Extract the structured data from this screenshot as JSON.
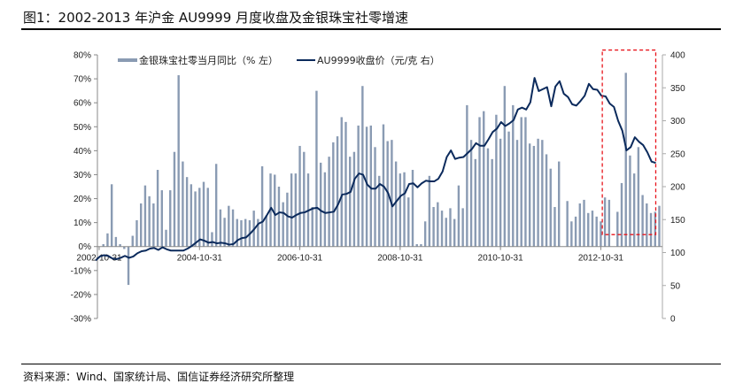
{
  "title": "图1：2002-2013 年沪金 AU9999 月度收盘及金银珠宝社零增速",
  "source": "资料来源：Wind、国家统计局、国信证券经济研究所整理",
  "chart_data": {
    "type": "bar+line",
    "x": [
      "2002-10",
      "2002-11",
      "2002-12",
      "2003-01",
      "2003-02",
      "2003-03",
      "2003-04",
      "2003-05",
      "2003-06",
      "2003-07",
      "2003-08",
      "2003-09",
      "2003-10",
      "2003-11",
      "2003-12",
      "2004-01",
      "2004-02",
      "2004-03",
      "2004-04",
      "2004-05",
      "2004-06",
      "2004-07",
      "2004-08",
      "2004-09",
      "2004-10",
      "2004-11",
      "2004-12",
      "2005-01",
      "2005-02",
      "2005-03",
      "2005-04",
      "2005-05",
      "2005-06",
      "2005-07",
      "2005-08",
      "2005-09",
      "2005-10",
      "2005-11",
      "2005-12",
      "2006-01",
      "2006-02",
      "2006-03",
      "2006-04",
      "2006-05",
      "2006-06",
      "2006-07",
      "2006-08",
      "2006-09",
      "2006-10",
      "2006-11",
      "2006-12",
      "2007-01",
      "2007-02",
      "2007-03",
      "2007-04",
      "2007-05",
      "2007-06",
      "2007-07",
      "2007-08",
      "2007-09",
      "2007-10",
      "2007-11",
      "2007-12",
      "2008-01",
      "2008-02",
      "2008-03",
      "2008-04",
      "2008-05",
      "2008-06",
      "2008-07",
      "2008-08",
      "2008-09",
      "2008-10",
      "2008-11",
      "2008-12",
      "2009-01",
      "2009-02",
      "2009-03",
      "2009-04",
      "2009-05",
      "2009-06",
      "2009-07",
      "2009-08",
      "2009-09",
      "2009-10",
      "2009-11",
      "2009-12",
      "2010-01",
      "2010-02",
      "2010-03",
      "2010-04",
      "2010-05",
      "2010-06",
      "2010-07",
      "2010-08",
      "2010-09",
      "2010-10",
      "2010-11",
      "2010-12",
      "2011-01",
      "2011-02",
      "2011-03",
      "2011-04",
      "2011-05",
      "2011-06",
      "2011-07",
      "2011-08",
      "2011-09",
      "2011-10",
      "2011-11",
      "2011-12",
      "2012-01",
      "2012-02",
      "2012-03",
      "2012-04",
      "2012-05",
      "2012-06",
      "2012-07",
      "2012-08",
      "2012-09",
      "2012-10",
      "2012-11",
      "2012-12",
      "2013-01",
      "2013-02",
      "2013-03",
      "2013-04",
      "2013-05",
      "2013-06",
      "2013-07",
      "2013-08",
      "2013-09",
      "2013-10",
      "2013-11",
      "2013-12"
    ],
    "series": [
      {
        "name": "金银珠宝社零当月同比（% 左）",
        "type": "bar",
        "axis": "left",
        "color": "#8a9bb3",
        "values": [
          null,
          1,
          5.5,
          26,
          4,
          1,
          -1,
          -16,
          4.5,
          11,
          18,
          25.5,
          21,
          18,
          32,
          23.5,
          7,
          23.5,
          39.5,
          71.5,
          35.5,
          29,
          26,
          23,
          24.5,
          27,
          24.5,
          6,
          34.5,
          15.5,
          12,
          17,
          15.5,
          11.5,
          11,
          11.5,
          11,
          15,
          11.5,
          33.5,
          13,
          30.5,
          30,
          25,
          18.5,
          22.5,
          30.5,
          30.5,
          42,
          39.5,
          30.5,
          16.5,
          65,
          35,
          31,
          37.5,
          43.5,
          46,
          54,
          52,
          37.5,
          39.5,
          50.5,
          67,
          50,
          50.5,
          41.5,
          29.5,
          51,
          44,
          44.5,
          35.5,
          30.5,
          31,
          20.5,
          32,
          1,
          1,
          10.5,
          29.5,
          16.5,
          18.5,
          15,
          12,
          16,
          11.5,
          25.5,
          16,
          59,
          44.5,
          36.5,
          54,
          56.5,
          41,
          36.5,
          55,
          45,
          67,
          48,
          59,
          44.5,
          54,
          54,
          43,
          42,
          45,
          44.5,
          38.5,
          32.5,
          16.5,
          35.5,
          null,
          19,
          10.5,
          12.5,
          18,
          19.5,
          14,
          15,
          12.5,
          10.5,
          20.5,
          19.5,
          null,
          14.5,
          26.5,
          72.5,
          38,
          30.5,
          41.5,
          21.5,
          18,
          14,
          14.5,
          17
        ]
      },
      {
        "name": "AU9999收盘价（元/克 右）",
        "type": "line",
        "axis": "right",
        "color": "#0b2a5c",
        "values": [
          88,
          94,
          96,
          95,
          91,
          90,
          92,
          95,
          92,
          94,
          99,
          102,
          103,
          106,
          107,
          104,
          108,
          105,
          103,
          103,
          103,
          103,
          106,
          110,
          115,
          120,
          118,
          115,
          116,
          114,
          115,
          114,
          112,
          113,
          119,
          122,
          123,
          129,
          136,
          144,
          147,
          157,
          168,
          157,
          161,
          160,
          155,
          153,
          157,
          160,
          161,
          164,
          167,
          168,
          163,
          160,
          161,
          162,
          173,
          188,
          189,
          192,
          212,
          220,
          218,
          203,
          197,
          197,
          204,
          200,
          190,
          170,
          178,
          186,
          190,
          204,
          205,
          199,
          205,
          209,
          208,
          208,
          212,
          223,
          245,
          255,
          242,
          244,
          245,
          251,
          257,
          266,
          262,
          262,
          272,
          283,
          288,
          298,
          292,
          296,
          301,
          317,
          320,
          317,
          328,
          365,
          345,
          348,
          351,
          322,
          352,
          360,
          341,
          336,
          325,
          323,
          330,
          338,
          356,
          348,
          347,
          338,
          337,
          326,
          321,
          300,
          285,
          255,
          260,
          275,
          268,
          263,
          252,
          238,
          236
        ]
      }
    ],
    "x_tick_labels": [
      "2002-10-31",
      "2004-10-31",
      "2006-10-31",
      "2008-10-31",
      "2010-10-31",
      "2012-10-31"
    ],
    "y_left": {
      "ylim": [
        -30,
        80
      ],
      "ticks": [
        "80%",
        "70%",
        "60%",
        "50%",
        "40%",
        "30%",
        "20%",
        "10%",
        "0%",
        "-10%",
        "-20%",
        "-30%"
      ]
    },
    "y_right": {
      "ylim": [
        0,
        400
      ],
      "ticks": [
        "400",
        "350",
        "300",
        "250",
        "200",
        "150",
        "100",
        "50",
        "0"
      ]
    },
    "highlight": {
      "x_from": "2012-11",
      "x_to": "2013-12",
      "y_left_range": [
        5,
        82
      ],
      "style": "dashed",
      "color": "#e8141b"
    },
    "legend": "top",
    "grid": false
  }
}
